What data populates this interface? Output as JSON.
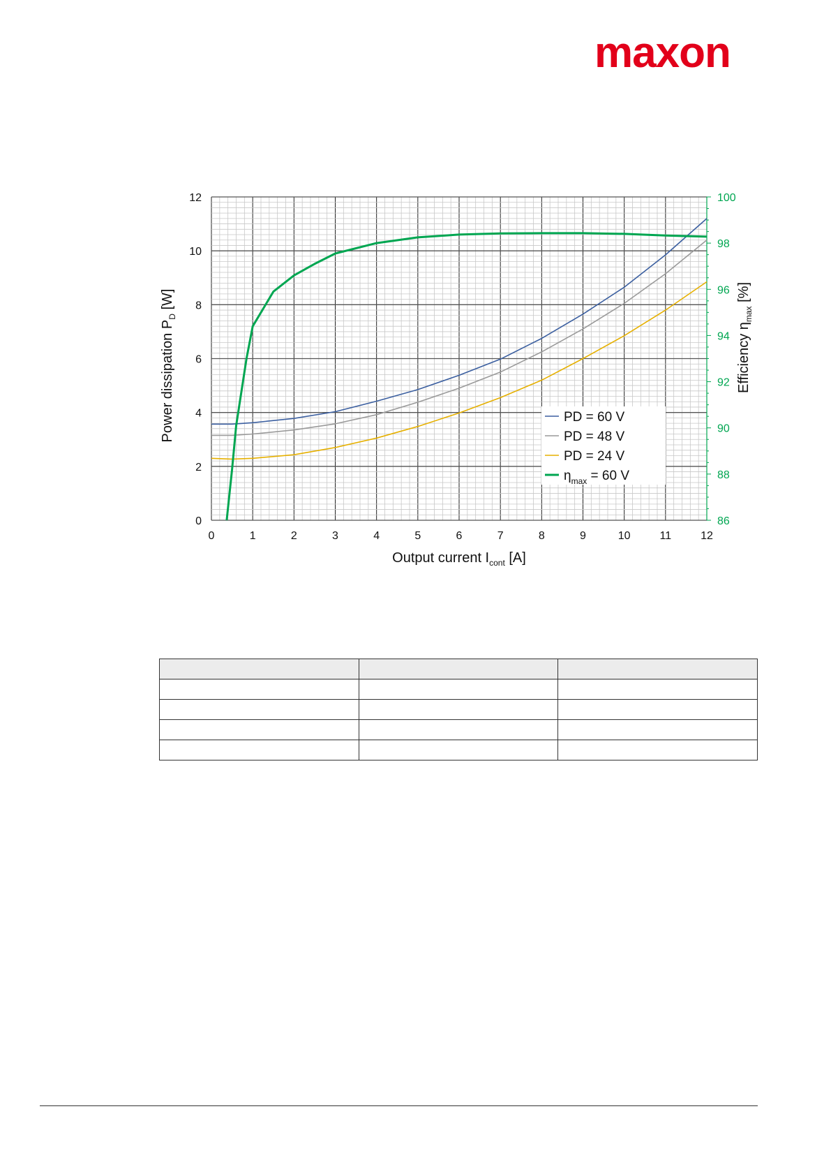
{
  "logo": {
    "text": "maxon",
    "color": "#e2001a"
  },
  "chart_data": {
    "type": "line",
    "title": "",
    "xlabel": "Output current I",
    "xlabel_sub": "cont",
    "xlabel_unit": " [A]",
    "ylabel": "Power dissipation P",
    "ylabel_sub": "D",
    "ylabel_unit": " [W]",
    "y2label": "Efficiency η",
    "y2label_sub": "max",
    "y2label_unit": " [%]",
    "xlim": [
      0,
      12
    ],
    "ylim": [
      0,
      12
    ],
    "y2lim": [
      86,
      100
    ],
    "xticks": [
      "0",
      "1",
      "2",
      "3",
      "4",
      "5",
      "6",
      "7",
      "8",
      "9",
      "10",
      "11",
      "12"
    ],
    "yticks": [
      "0",
      "2",
      "4",
      "6",
      "8",
      "10",
      "12"
    ],
    "y2ticks": [
      "86",
      "88",
      "90",
      "92",
      "94",
      "96",
      "98",
      "100"
    ],
    "grid": true,
    "legend_position": "lower-right",
    "series": [
      {
        "name": "PD = 60 V",
        "axis": "left",
        "color": "#3b5fa0",
        "x": [
          0,
          0.5,
          1,
          2,
          3,
          4,
          5,
          6,
          7,
          8,
          9,
          10,
          11,
          12
        ],
        "y": [
          3.57,
          3.57,
          3.62,
          3.78,
          4.03,
          4.42,
          4.85,
          5.38,
          5.98,
          6.75,
          7.65,
          8.65,
          9.85,
          11.2
        ]
      },
      {
        "name": "PD = 48 V",
        "axis": "left",
        "color": "#9a9a9a",
        "x": [
          0,
          0.5,
          1,
          2,
          3,
          4,
          5,
          6,
          7,
          8,
          9,
          10,
          11,
          12
        ],
        "y": [
          3.15,
          3.15,
          3.2,
          3.35,
          3.58,
          3.92,
          4.38,
          4.9,
          5.5,
          6.25,
          7.1,
          8.05,
          9.15,
          10.4
        ]
      },
      {
        "name": "PD = 24 V",
        "axis": "left",
        "color": "#e6b000",
        "x": [
          0,
          0.5,
          1,
          2,
          3,
          4,
          5,
          6,
          7,
          8,
          9,
          10,
          11,
          12
        ],
        "y": [
          2.3,
          2.27,
          2.3,
          2.43,
          2.7,
          3.05,
          3.48,
          3.98,
          4.55,
          5.2,
          6.0,
          6.85,
          7.8,
          8.85
        ]
      },
      {
        "name": "η",
        "name_sub": "max",
        "name_suffix": " = 60 V",
        "axis": "right",
        "color": "#00a651",
        "x": [
          0.37,
          0.5,
          0.6,
          0.85,
          1,
          1.5,
          2,
          2.5,
          3,
          4,
          5,
          6,
          7,
          8,
          9,
          10,
          11,
          12
        ],
        "y": [
          86,
          88.2,
          90.1,
          93,
          94.4,
          95.9,
          96.6,
          97.1,
          97.55,
          98.0,
          98.25,
          98.37,
          98.42,
          98.43,
          98.43,
          98.4,
          98.33,
          98.28
        ]
      }
    ]
  },
  "table": {
    "rows": 5,
    "cols": 3
  }
}
